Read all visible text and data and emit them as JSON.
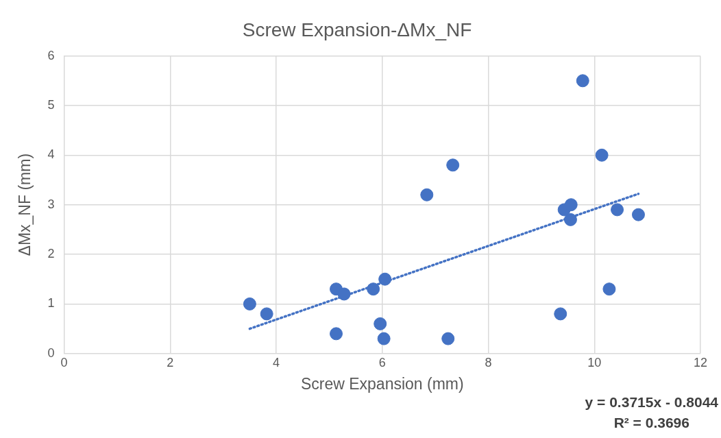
{
  "chart_data": {
    "type": "scatter",
    "title": "Screw Expansion-ΔMx_NF",
    "xlabel": "Screw Expansion (mm)",
    "ylabel": "ΔMx_NF (mm)",
    "xlim": [
      0,
      12
    ],
    "xticks": [
      0,
      2,
      4,
      6,
      8,
      10,
      12
    ],
    "ylim": [
      0,
      6
    ],
    "yticks": [
      0,
      1,
      2,
      3,
      4,
      5,
      6
    ],
    "grid": true,
    "legend": false,
    "marker": "circle",
    "series": [
      {
        "color": "#4472c4",
        "x": [
          3.5,
          3.82,
          5.13,
          5.13,
          5.28,
          5.83,
          5.96,
          6.05,
          6.03,
          6.84,
          7.24,
          7.33,
          9.78,
          10.14,
          9.43,
          9.56,
          9.55,
          10.43,
          10.83,
          10.28,
          9.36
        ],
        "values": [
          1.0,
          0.8,
          1.3,
          0.4,
          1.2,
          1.3,
          0.6,
          1.5,
          0.3,
          3.2,
          0.3,
          3.8,
          5.5,
          4.0,
          2.9,
          3.0,
          2.7,
          2.9,
          2.8,
          1.3,
          0.8
        ]
      },
      {
        "type": "line",
        "color": "#4472c4",
        "line_style": "dotted",
        "marker": "none",
        "x": [
          3.5,
          10.83
        ],
        "values": [
          0.5,
          3.22
        ]
      }
    ],
    "annotations": [
      "y = 0.3715x - 0.8044",
      "R² = 0.3696"
    ]
  }
}
